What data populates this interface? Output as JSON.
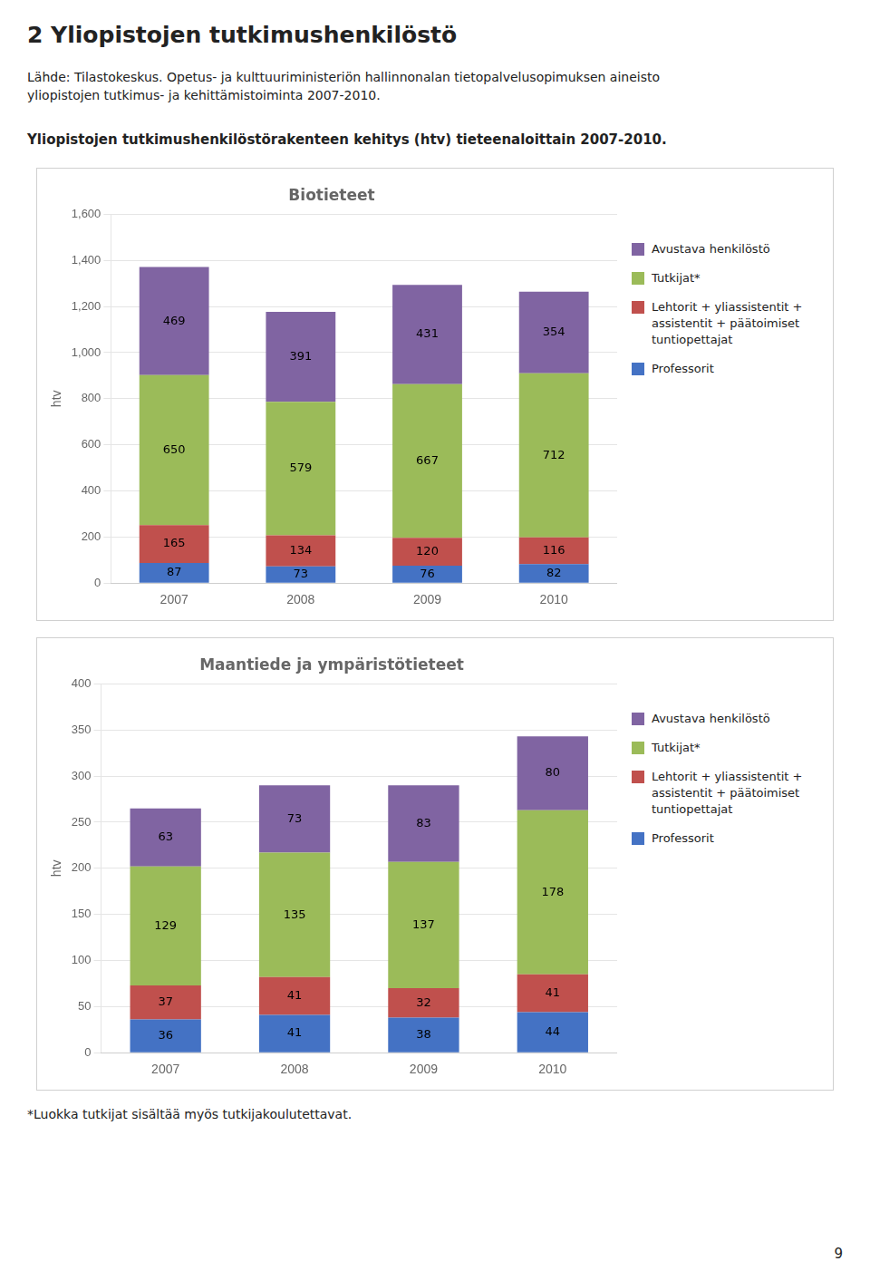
{
  "title": "2  Yliopistojen tutkimushenkilöstö",
  "subtitle": "Yliopistojen tutkimushenkilöstörakenteen kehitys (htv) tieteenaloittain 2007-2010.",
  "annotations": [
    "Lähde: Tilastokeskus. Opetus- ja kulttuuriministeriön hallinnonalan tietopalvelusopimuksen aineisto",
    "yliopistojen tutkimus- ja kehittämistoiminta 2007-2010.",
    "*Luokka tutkijat sisältää myös tutkijakoulutettavat.",
    "9"
  ],
  "chart_data": [
    {
      "type": "bar",
      "title": "Biotieteet",
      "ylabel": "htv",
      "categories": [
        "2007",
        "2008",
        "2009",
        "2010"
      ],
      "series": [
        {
          "name": "Professorit",
          "color": "#4472C4",
          "values": [
            87,
            73,
            76,
            82
          ]
        },
        {
          "name": "Lehtorit + yliassistentit +\nassistentit + päätoimiset\ntuntiopettajat",
          "color": "#C0504D",
          "values": [
            165,
            134,
            120,
            116
          ]
        },
        {
          "name": "Tutkijat*",
          "color": "#9BBB59",
          "values": [
            650,
            579,
            667,
            712
          ]
        },
        {
          "name": "Avustava henkilöstö",
          "color": "#8064A2",
          "values": [
            469,
            391,
            431,
            354
          ]
        }
      ],
      "ylim": [
        0,
        1600
      ],
      "yticks": [
        0,
        200,
        400,
        600,
        800,
        1000,
        1200,
        1400,
        1600
      ],
      "stacked": true,
      "data_labels": true,
      "grid": true,
      "legend": "right"
    },
    {
      "type": "bar",
      "title": "Maantiede ja ympäristötieteet",
      "ylabel": "htv",
      "categories": [
        "2007",
        "2008",
        "2009",
        "2010"
      ],
      "series": [
        {
          "name": "Professorit",
          "color": "#4472C4",
          "values": [
            36,
            41,
            38,
            44
          ]
        },
        {
          "name": "Lehtorit + yliassistentit +\nassistentit + päätoimiset\ntuntiopettajat",
          "color": "#C0504D",
          "values": [
            37,
            41,
            32,
            41
          ]
        },
        {
          "name": "Tutkijat*",
          "color": "#9BBB59",
          "values": [
            129,
            135,
            137,
            178
          ]
        },
        {
          "name": "Avustava henkilöstö",
          "color": "#8064A2",
          "values": [
            63,
            73,
            83,
            80
          ]
        }
      ],
      "ylim": [
        0,
        400
      ],
      "yticks": [
        0,
        50,
        100,
        150,
        200,
        250,
        300,
        350,
        400
      ],
      "stacked": true,
      "data_labels": true,
      "grid": true,
      "legend": "right"
    }
  ]
}
